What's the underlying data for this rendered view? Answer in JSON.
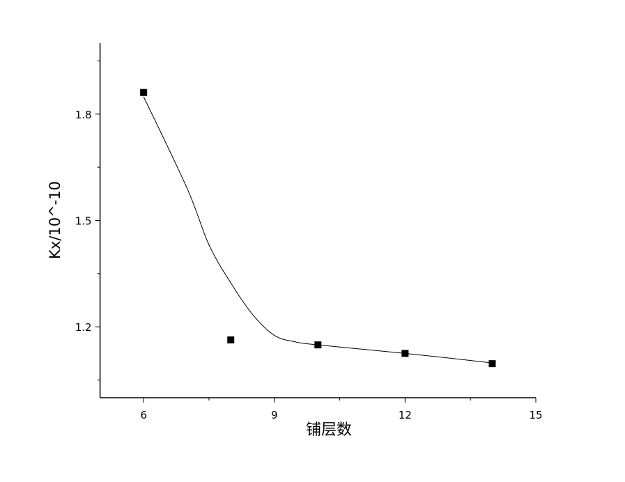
{
  "chart_data": {
    "type": "scatter",
    "x_label": "铺层数",
    "y_label": "Kx/10^-10",
    "xlim": [
      5,
      15
    ],
    "xticks": [
      6,
      9,
      12,
      15
    ],
    "xminorticks": [
      7.5,
      10.5,
      13.5
    ],
    "ylim": [
      1.0,
      2.0
    ],
    "yticks": [
      1.2,
      1.5,
      1.8
    ],
    "yminorticks": [
      1.05,
      1.35,
      1.65,
      1.95
    ],
    "grid": false,
    "series": [
      {
        "color": "#000000",
        "marker": "square",
        "x": [
          6,
          8,
          10,
          12,
          14
        ],
        "values": [
          1.861,
          1.163,
          1.149,
          1.125,
          1.096
        ]
      },
      {
        "color": "#000000",
        "line": "smooth",
        "x": [
          6,
          7,
          7.5,
          8,
          8.5,
          9,
          9.5,
          10,
          11,
          12,
          13,
          14
        ],
        "values": [
          1.849,
          1.59,
          1.431,
          1.324,
          1.235,
          1.176,
          1.157,
          1.149,
          1.137,
          1.125,
          1.112,
          1.098
        ]
      }
    ]
  }
}
